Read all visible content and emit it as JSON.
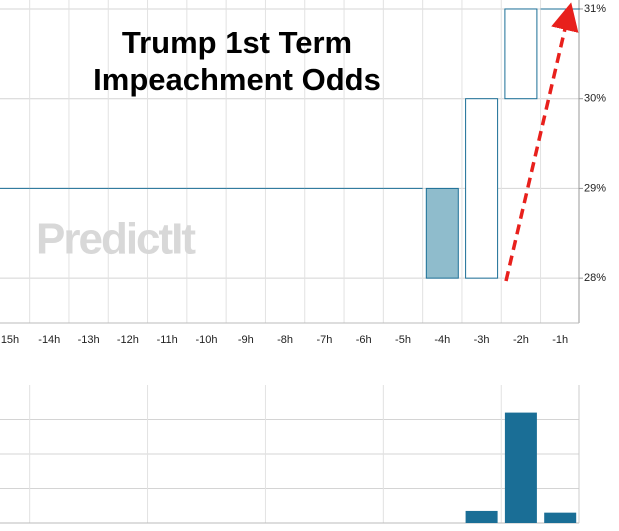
{
  "chart_data": {
    "type": "candlestick",
    "title_lines": [
      "Trump 1st Term",
      "Impeachment Odds"
    ],
    "watermark": "PredictIt",
    "categories": [
      "15h",
      "-14h",
      "-13h",
      "-12h",
      "-11h",
      "-10h",
      "-9h",
      "-8h",
      "-7h",
      "-6h",
      "-5h",
      "-4h",
      "-3h",
      "-2h",
      "-1h"
    ],
    "open": [
      29,
      29,
      29,
      29,
      29,
      29,
      29,
      29,
      29,
      29,
      29,
      29,
      28,
      30,
      31
    ],
    "close": [
      29,
      29,
      29,
      29,
      29,
      29,
      29,
      29,
      29,
      29,
      29,
      28,
      30,
      31,
      31
    ],
    "up_color": "#1a6e96",
    "down_color": "#8fbccc",
    "ylim": [
      27.5,
      31.1
    ],
    "yticks": [
      {
        "value": 28,
        "label": "28%"
      },
      {
        "value": 29,
        "label": "29%"
      },
      {
        "value": 30,
        "label": "30%"
      },
      {
        "value": 31,
        "label": "31%"
      }
    ],
    "volume": [
      0,
      0,
      0,
      0,
      0,
      0,
      0,
      0,
      0,
      0,
      0,
      0,
      0.35,
      3.2,
      0.3
    ],
    "volume_color": "#1a6e96",
    "volume_ylim": [
      0,
      4
    ],
    "volume_grid": [
      1,
      2,
      3
    ],
    "grid": true
  }
}
